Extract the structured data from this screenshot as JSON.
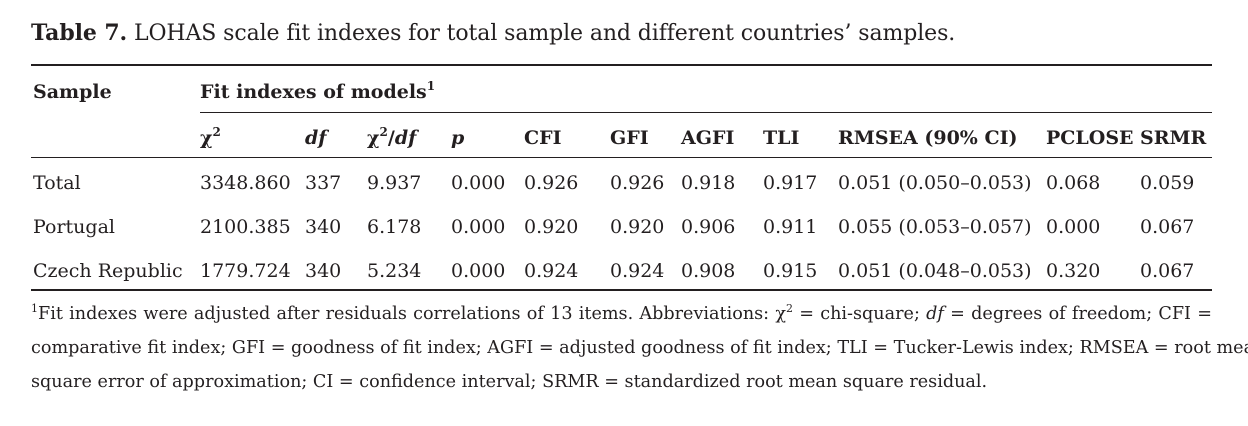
{
  "caption": {
    "label": "Table 7.",
    "text": " LOHAS scale fit indexes for total sample and different countries’ samples."
  },
  "header": {
    "sample": "Sample",
    "group": "Fit indexes of models",
    "group_sup": "1",
    "chi2": "χ",
    "chi2_sup": "2",
    "df": "df",
    "chi2df_a": "χ",
    "chi2df_sup": "2",
    "chi2df_slash": "/",
    "chi2df_b": "df",
    "p": "p",
    "cfi": "CFI",
    "gfi": "GFI",
    "agfi": "AGFI",
    "tli": "TLI",
    "rmsea": "RMSEA (90% CI)",
    "pclose": "PCLOSE",
    "srmr": "SRMR"
  },
  "rows": [
    {
      "sample": "Total",
      "chi2": "3348.860",
      "df": "337",
      "chi2df": "9.937",
      "p": "0.000",
      "cfi": "0.926",
      "gfi": "0.926",
      "agfi": "0.918",
      "tli": "0.917",
      "rmsea": "0.051 (0.050–0.053)",
      "pclose": "0.068",
      "srmr": "0.059"
    },
    {
      "sample": "Portugal",
      "chi2": "2100.385",
      "df": "340",
      "chi2df": "6.178",
      "p": "0.000",
      "cfi": "0.920",
      "gfi": "0.920",
      "agfi": "0.906",
      "tli": "0.911",
      "rmsea": "0.055 (0.053–0.057)",
      "pclose": "0.000",
      "srmr": "0.067"
    },
    {
      "sample": "Czech Republic",
      "chi2": "1779.724",
      "df": "340",
      "chi2df": "5.234",
      "p": "0.000",
      "cfi": "0.924",
      "gfi": "0.924",
      "agfi": "0.908",
      "tli": "0.915",
      "rmsea": "0.051 (0.048–0.053)",
      "pclose": "0.320",
      "srmr": "0.067"
    }
  ],
  "footnote": {
    "sup": "1",
    "l1a": "Fit indexes were adjusted after residuals correlations of 13 items. Abbreviations: χ",
    "l1sup": "2",
    "l1b": " = chi-square; ",
    "l1df": "df",
    "l1c": " = degrees of freedom; CFI =",
    "l2": "comparative fit index; GFI = goodness of fit index; AGFI = adjusted goodness of fit index; TLI = Tucker-Lewis index; RMSEA = root mean",
    "l3": "square error of approximation; CI = confidence interval; SRMR = standardized root mean square residual."
  }
}
